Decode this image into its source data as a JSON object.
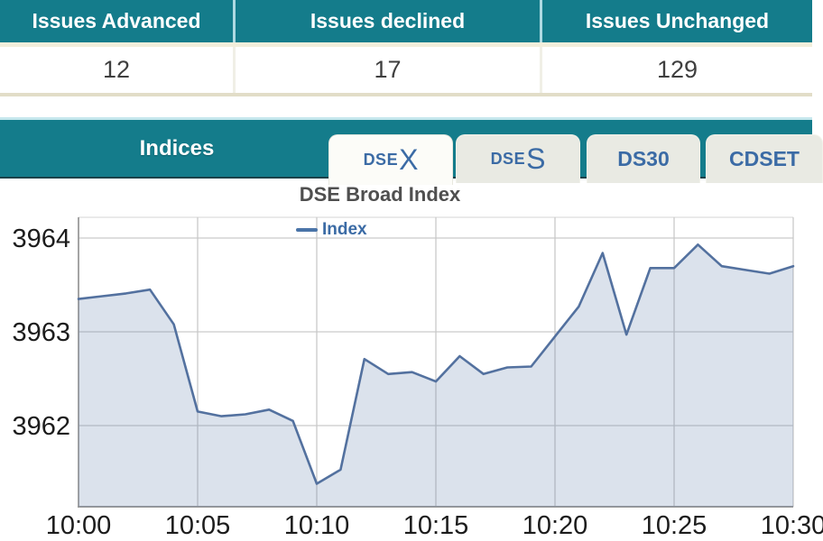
{
  "issues_table": {
    "headers": [
      "Issues Advanced",
      "Issues declined",
      "Issues Unchanged"
    ],
    "values": [
      "12",
      "17",
      "129"
    ]
  },
  "indices": {
    "title": "Indices",
    "tabs": [
      {
        "label": "DSEX",
        "prefix": "DSE",
        "suffix": "X",
        "active": true
      },
      {
        "label": "DSES",
        "prefix": "DSE",
        "suffix": "S",
        "active": false
      },
      {
        "label": "DS30",
        "active": false
      },
      {
        "label": "CDSET",
        "active": false
      }
    ]
  },
  "colors": {
    "teal_header": "#147c8b",
    "teal_border_dark": "#1c4249",
    "tab_text_blue": "#3b6ba5",
    "header_text": "#ffffff",
    "value_text": "#3f3f3f"
  },
  "chart_data": {
    "type": "area",
    "title": "DSE Broad Index",
    "legend": [
      "Index"
    ],
    "legend_position": "top",
    "grid": true,
    "xlabel": "",
    "ylabel": "",
    "xtick_labels": [
      "10:00",
      "10:05",
      "10:10",
      "10:15",
      "10:20",
      "10:25",
      "10:30"
    ],
    "ytick_values": [
      3964,
      3963,
      3962
    ],
    "ylim": [
      3961.1,
      3964.3
    ],
    "x_minutes_after_10am": [
      0,
      1,
      2,
      3,
      4,
      5,
      6,
      7,
      8,
      9,
      10,
      11,
      12,
      13,
      14,
      15,
      16,
      17,
      18,
      19,
      20,
      21,
      22,
      23,
      24,
      25,
      26,
      27,
      28,
      29,
      30
    ],
    "series": [
      {
        "name": "Index",
        "values": [
          3963.35,
          3963.38,
          3963.41,
          3963.45,
          3963.08,
          3962.15,
          3962.1,
          3962.12,
          3962.17,
          3962.05,
          3961.38,
          3961.53,
          3962.71,
          3962.55,
          3962.57,
          3962.47,
          3962.74,
          3962.55,
          3962.62,
          3962.63,
          3962.95,
          3963.27,
          3963.84,
          3962.97,
          3963.68,
          3963.68,
          3963.93,
          3963.7,
          3963.66,
          3963.62,
          3963.7
        ]
      }
    ],
    "colors": {
      "line": "#53719f",
      "fill": "rgba(90,124,169,0.22)",
      "grid": "#c9c9c9",
      "axis": "#9a9a9a",
      "tick_text": "#1c1c1c"
    }
  }
}
